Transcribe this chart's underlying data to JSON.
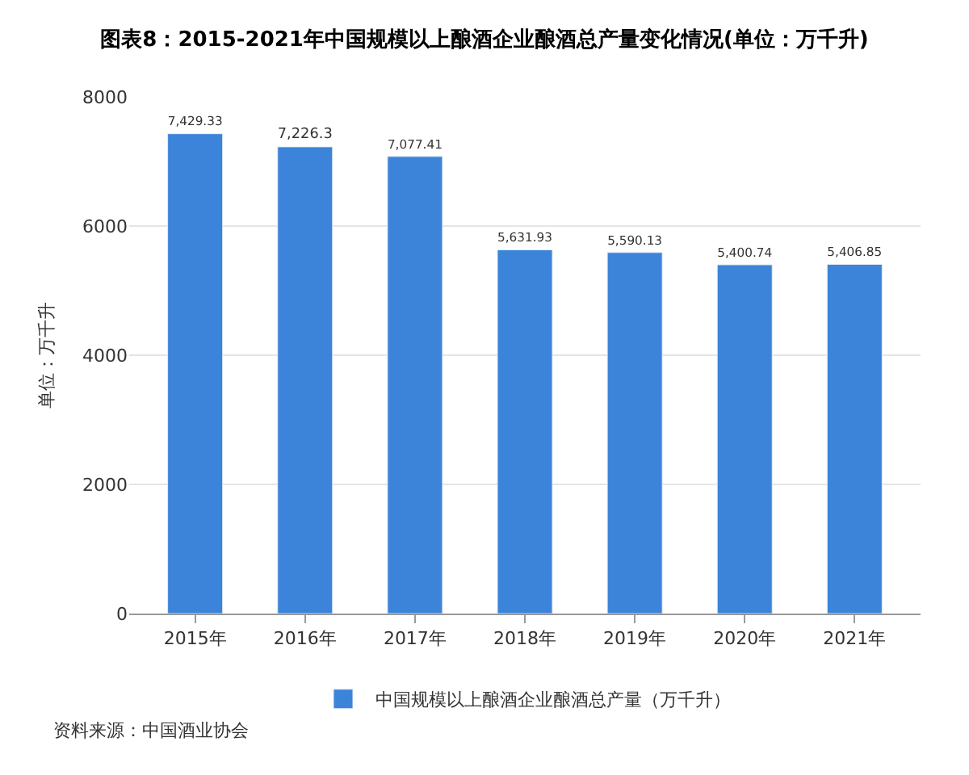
{
  "chart_data": {
    "type": "bar",
    "title": "图表8：2015-2021年中国规模以上酿酒企业酿酒总产量变化情况(单位：万千升)",
    "ylabel": "单位：万千升",
    "categories": [
      "2015年",
      "2016年",
      "2017年",
      "2018年",
      "2019年",
      "2020年",
      "2021年"
    ],
    "series": [
      {
        "name": "中国规模以上酿酒企业酿酒总产量（万千升）",
        "color": "#3b84d9",
        "values": [
          7429.33,
          7226.3,
          7077.41,
          5631.93,
          5590.13,
          5400.74,
          5406.85
        ],
        "value_labels": [
          "7,429.33",
          "7,226.3",
          "7,077.41",
          "5,631.93",
          "5,590.13",
          "5,400.74",
          "5,406.85"
        ]
      }
    ],
    "ylim": [
      0,
      8000
    ],
    "yticks": [
      0,
      2000,
      4000,
      6000,
      8000
    ],
    "grid": "y",
    "legend": "bottom",
    "annotations": [
      "资料来源：中国酒业协会"
    ]
  }
}
